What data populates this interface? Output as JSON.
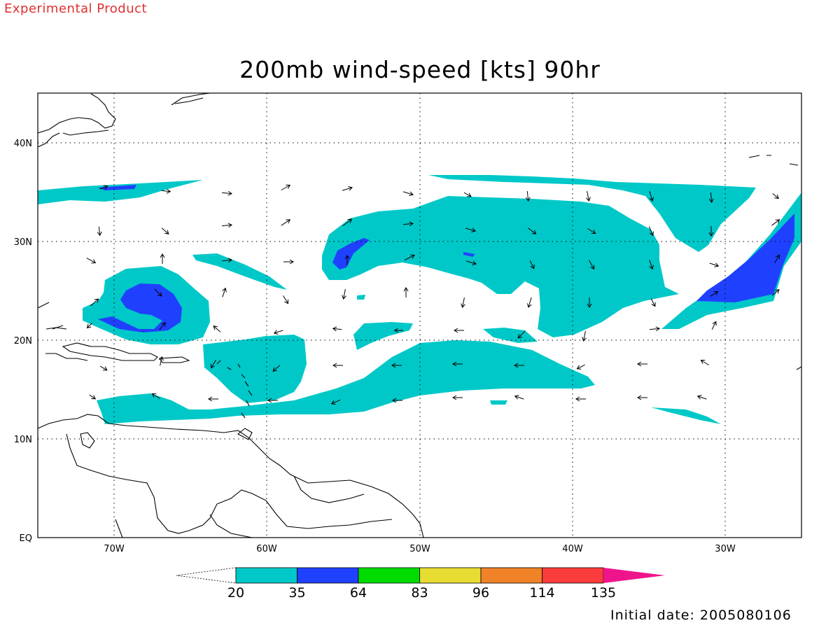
{
  "header": {
    "watermark": "Experimental Product",
    "title": "200mb wind-speed [kts] 90hr"
  },
  "map": {
    "lon_range": [
      -75,
      -25
    ],
    "lat_range": [
      0,
      45
    ],
    "lon_ticks": [
      {
        "value": -70,
        "label": "70W"
      },
      {
        "value": -60,
        "label": "60W"
      },
      {
        "value": -50,
        "label": "50W"
      },
      {
        "value": -40,
        "label": "40W"
      },
      {
        "value": -30,
        "label": "30W"
      }
    ],
    "lat_ticks": [
      {
        "value": 0,
        "label": "EQ"
      },
      {
        "value": 10,
        "label": "10N"
      },
      {
        "value": 20,
        "label": "20N"
      },
      {
        "value": 30,
        "label": "30N"
      },
      {
        "value": 40,
        "label": "40N"
      }
    ],
    "grid": "dotted",
    "colors": {
      "band_20_35": "#00c8c8",
      "band_35_64": "#2040ff",
      "coastline": "#000000"
    }
  },
  "legend": {
    "colors": [
      "#00c8c8",
      "#2040ff",
      "#00dc00",
      "#e6dc32",
      "#f08228",
      "#fa3c3c",
      "#f0148c"
    ],
    "labels": [
      "20",
      "35",
      "64",
      "83",
      "96",
      "114",
      "135"
    ]
  },
  "footer": {
    "initial_date": "Initial date: 2005080106"
  }
}
